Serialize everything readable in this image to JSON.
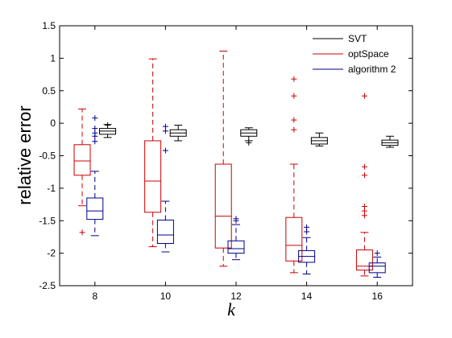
{
  "chart_data": {
    "type": "boxplot",
    "xlabel": "k",
    "ylabel": "relative error",
    "ylim": [
      -2.5,
      1.5
    ],
    "yticks": [
      1.5,
      1,
      0.5,
      0,
      -0.5,
      -1,
      -1.5,
      -2,
      -2.5
    ],
    "categories": [
      "8",
      "10",
      "12",
      "14",
      "16"
    ],
    "legend_position": "top-right",
    "series": [
      {
        "name": "SVT",
        "color": "#000000",
        "boxes": [
          {
            "whisker_low": -0.22,
            "q1": -0.17,
            "median": -0.12,
            "q3": -0.08,
            "whisker_high": -0.02,
            "outliers": [
              -0.03
            ]
          },
          {
            "whisker_low": -0.27,
            "q1": -0.2,
            "median": -0.15,
            "q3": -0.1,
            "whisker_high": -0.03,
            "outliers": []
          },
          {
            "whisker_low": -0.27,
            "q1": -0.2,
            "median": -0.15,
            "q3": -0.1,
            "whisker_high": -0.07,
            "outliers": [
              -0.3
            ]
          },
          {
            "whisker_low": -0.35,
            "q1": -0.32,
            "median": -0.27,
            "q3": -0.22,
            "whisker_high": -0.15,
            "outliers": []
          },
          {
            "whisker_low": -0.37,
            "q1": -0.34,
            "median": -0.3,
            "q3": -0.26,
            "whisker_high": -0.2,
            "outliers": []
          }
        ]
      },
      {
        "name": "optSpace",
        "color": "#cc0000",
        "boxes": [
          {
            "whisker_low": -1.27,
            "q1": -0.8,
            "median": -0.58,
            "q3": -0.33,
            "whisker_high": 0.22,
            "outliers": [
              -1.68
            ]
          },
          {
            "whisker_low": -1.9,
            "q1": -1.37,
            "median": -0.89,
            "q3": -0.27,
            "whisker_high": 0.99,
            "outliers": []
          },
          {
            "whisker_low": -2.2,
            "q1": -1.92,
            "median": -1.43,
            "q3": -0.63,
            "whisker_high": 1.11,
            "outliers": []
          },
          {
            "whisker_low": -2.3,
            "q1": -2.12,
            "median": -1.88,
            "q3": -1.45,
            "whisker_high": -0.63,
            "outliers": [
              0.68,
              0.42,
              0.05,
              -0.1
            ]
          },
          {
            "whisker_low": -2.35,
            "q1": -2.26,
            "median": -2.2,
            "q3": -1.95,
            "whisker_high": -1.68,
            "outliers": [
              0.42,
              -0.67,
              -0.8,
              -1.28,
              -1.35,
              -1.42
            ]
          }
        ]
      },
      {
        "name": "algorithm 2",
        "color": "#00008b",
        "boxes": [
          {
            "whisker_low": -1.73,
            "q1": -1.48,
            "median": -1.35,
            "q3": -1.15,
            "whisker_high": -0.74,
            "outliers": [
              0.08,
              -0.08,
              -0.15,
              -0.2,
              -0.28
            ]
          },
          {
            "whisker_low": -1.98,
            "q1": -1.85,
            "median": -1.72,
            "q3": -1.49,
            "whisker_high": -1.2,
            "outliers": [
              -0.05,
              -0.12,
              -0.42
            ]
          },
          {
            "whisker_low": -2.1,
            "q1": -2.0,
            "median": -1.93,
            "q3": -1.81,
            "whisker_high": -1.56,
            "outliers": [
              -1.47,
              -1.5
            ]
          },
          {
            "whisker_low": -2.32,
            "q1": -2.14,
            "median": -2.05,
            "q3": -1.96,
            "whisker_high": -1.76,
            "outliers": [
              -1.6,
              -1.67
            ]
          },
          {
            "whisker_low": -2.37,
            "q1": -2.3,
            "median": -2.2,
            "q3": -2.15,
            "whisker_high": -2.06,
            "outliers": [
              -2.0
            ]
          }
        ]
      }
    ]
  }
}
